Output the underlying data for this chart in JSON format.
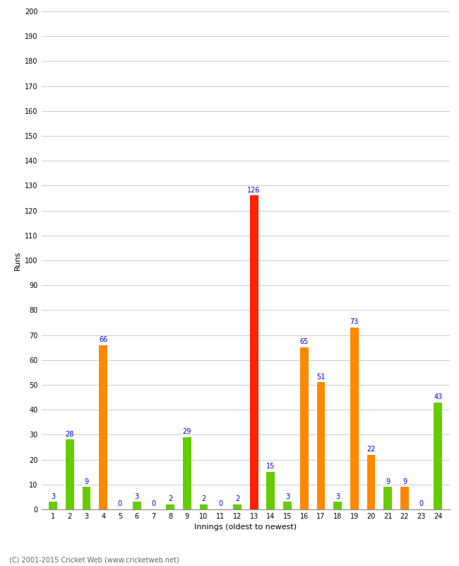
{
  "xlabel": "Innings (oldest to newest)",
  "ylabel": "Runs",
  "copyright": "(C) 2001-2015 Cricket Web (www.cricketweb.net)",
  "ylim": [
    0,
    200
  ],
  "yticks": [
    0,
    10,
    20,
    30,
    40,
    50,
    60,
    70,
    80,
    90,
    100,
    110,
    120,
    130,
    140,
    150,
    160,
    170,
    180,
    190,
    200
  ],
  "innings": [
    1,
    2,
    3,
    4,
    5,
    6,
    7,
    8,
    9,
    10,
    11,
    12,
    13,
    14,
    15,
    16,
    17,
    18,
    19,
    20,
    21,
    22,
    23,
    24
  ],
  "values": [
    3,
    28,
    9,
    66,
    0,
    3,
    0,
    2,
    29,
    2,
    0,
    2,
    126,
    15,
    3,
    65,
    51,
    3,
    73,
    22,
    9,
    9,
    0,
    43
  ],
  "colors": [
    "#66cc00",
    "#66cc00",
    "#66cc00",
    "#ff8800",
    "#66cc00",
    "#66cc00",
    "#66cc00",
    "#66cc00",
    "#66cc00",
    "#66cc00",
    "#66cc00",
    "#66cc00",
    "#ff2200",
    "#66cc00",
    "#66cc00",
    "#ff8800",
    "#ff8800",
    "#66cc00",
    "#ff8800",
    "#ff8800",
    "#66cc00",
    "#ff8800",
    "#66cc00",
    "#66cc00"
  ],
  "label_color": "#0000cc",
  "bg_color": "#ffffff",
  "grid_color": "#cccccc",
  "label_fontsize": 7,
  "tick_fontsize": 7,
  "axis_label_fontsize": 8,
  "ylabel_fontsize": 8
}
